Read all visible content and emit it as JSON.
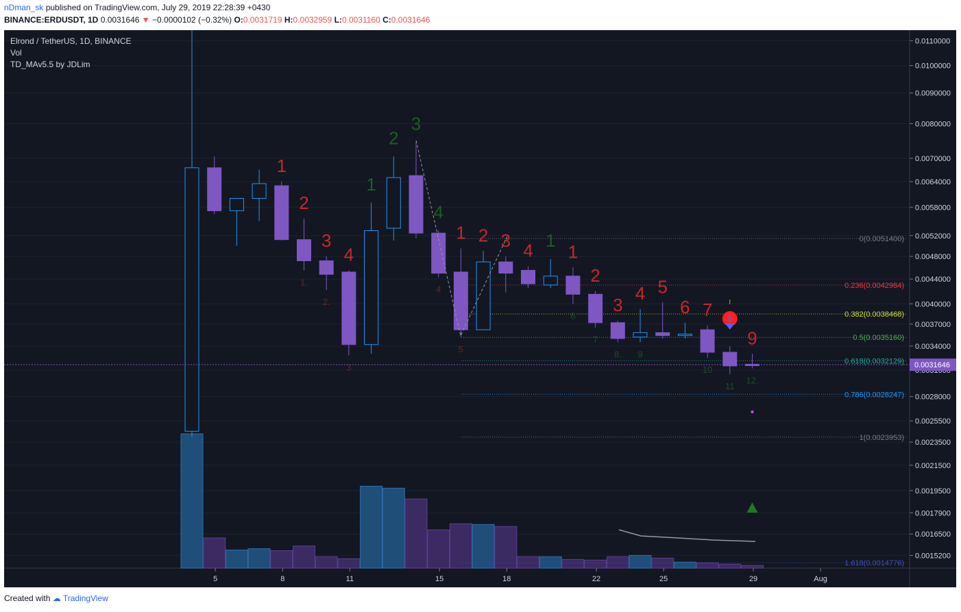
{
  "header": {
    "author": "nDman_sk",
    "published_text": "published on TradingView.com, July 29, 2019 22:28:39 +0430",
    "symbol": "BINANCE:ERDUSDT, 1D",
    "last": "0.0031646",
    "change": "−0.0000102 (−0.32%)",
    "o_label": "O:",
    "o": "0.0031719",
    "h_label": "H:",
    "h": "0.0032959",
    "l_label": "L:",
    "l": "0.0031160",
    "c_label": "C:",
    "c": "0.0031646"
  },
  "legend": {
    "title": "Elrond / TetherUS, 1D, BINANCE",
    "vol": "Vol",
    "indicator": "TD_MAv5.5 by JDLim"
  },
  "footer": {
    "created_with": "Created with",
    "brand": "TradingView"
  },
  "colors": {
    "background": "#131722",
    "candle_bear": "#7e57c2",
    "candle_bull": "#2196f3",
    "td_sell": "#c62828",
    "td_buy": "#1b5e20",
    "last_price": "#7e57c2"
  },
  "chart_data": {
    "type": "candlestick",
    "price_axis": [
      "0.0110000",
      "0.0100000",
      "0.0090000",
      "0.0080000",
      "0.0070000",
      "0.0064000",
      "0.0058000",
      "0.0052000",
      "0.0048000",
      "0.0044000",
      "0.0040000",
      "0.0037000",
      "0.0034000",
      "0.0031000",
      "0.0028000",
      "0.0025500",
      "0.0023500",
      "0.0021500",
      "0.0019500",
      "0.0017900",
      "0.0016500",
      "0.0015200"
    ],
    "price_scale": "log",
    "last_price_label": "0.0031646",
    "time_axis": [
      "5",
      "8",
      "11",
      "15",
      "18",
      "22",
      "25",
      "29",
      "Aug"
    ],
    "candles": [
      {
        "o": 0.00245,
        "h": 0.0125,
        "l": 0.0024,
        "c": 0.00675,
        "dir": "bull"
      },
      {
        "o": 0.00675,
        "h": 0.00705,
        "l": 0.00565,
        "c": 0.00572,
        "dir": "bear"
      },
      {
        "o": 0.00572,
        "h": 0.006,
        "l": 0.005,
        "c": 0.006,
        "dir": "bull"
      },
      {
        "o": 0.006,
        "h": 0.0067,
        "l": 0.0055,
        "c": 0.00635,
        "dir": "bull"
      },
      {
        "o": 0.0063,
        "h": 0.0064,
        "l": 0.0051,
        "c": 0.00512,
        "dir": "bear"
      },
      {
        "o": 0.00512,
        "h": 0.00555,
        "l": 0.00455,
        "c": 0.00472,
        "dir": "bear"
      },
      {
        "o": 0.00472,
        "h": 0.0048,
        "l": 0.00422,
        "c": 0.00448,
        "dir": "bear"
      },
      {
        "o": 0.00452,
        "h": 0.00455,
        "l": 0.00328,
        "c": 0.00342,
        "dir": "bear"
      },
      {
        "o": 0.00342,
        "h": 0.0059,
        "l": 0.0033,
        "c": 0.0053,
        "dir": "bull"
      },
      {
        "o": 0.00535,
        "h": 0.00705,
        "l": 0.0051,
        "c": 0.0065,
        "dir": "bull"
      },
      {
        "o": 0.00655,
        "h": 0.00745,
        "l": 0.00515,
        "c": 0.00525,
        "dir": "bear"
      },
      {
        "o": 0.00525,
        "h": 0.0053,
        "l": 0.00443,
        "c": 0.0045,
        "dir": "bear"
      },
      {
        "o": 0.00452,
        "h": 0.00495,
        "l": 0.00352,
        "c": 0.00362,
        "dir": "bear"
      },
      {
        "o": 0.00362,
        "h": 0.0049,
        "l": 0.00362,
        "c": 0.0047,
        "dir": "bull"
      },
      {
        "o": 0.0047,
        "h": 0.0048,
        "l": 0.00418,
        "c": 0.0045,
        "dir": "bear"
      },
      {
        "o": 0.00455,
        "h": 0.00462,
        "l": 0.00425,
        "c": 0.00432,
        "dir": "bear"
      },
      {
        "o": 0.0043,
        "h": 0.00475,
        "l": 0.00425,
        "c": 0.00445,
        "dir": "bull"
      },
      {
        "o": 0.00445,
        "h": 0.0046,
        "l": 0.004,
        "c": 0.00415,
        "dir": "bear"
      },
      {
        "o": 0.00415,
        "h": 0.0042,
        "l": 0.00365,
        "c": 0.00372,
        "dir": "bear"
      },
      {
        "o": 0.00372,
        "h": 0.00375,
        "l": 0.00345,
        "c": 0.0035,
        "dir": "bear"
      },
      {
        "o": 0.00352,
        "h": 0.00392,
        "l": 0.00345,
        "c": 0.00358,
        "dir": "bull"
      },
      {
        "o": 0.00358,
        "h": 0.00402,
        "l": 0.0035,
        "c": 0.00354,
        "dir": "bear"
      },
      {
        "o": 0.00354,
        "h": 0.00372,
        "l": 0.0035,
        "c": 0.00356,
        "dir": "bull"
      },
      {
        "o": 0.00362,
        "h": 0.00368,
        "l": 0.00325,
        "c": 0.00332,
        "dir": "bear"
      },
      {
        "o": 0.00332,
        "h": 0.0034,
        "l": 0.00305,
        "c": 0.00315,
        "dir": "bear"
      },
      {
        "o": 0.00317,
        "h": 0.0033,
        "l": 0.00312,
        "c": 0.00316,
        "dir": "bear"
      }
    ],
    "volumes": [
      {
        "v": 1.0,
        "dir": "bull"
      },
      {
        "v": 0.225,
        "dir": "bear"
      },
      {
        "v": 0.135,
        "dir": "bull"
      },
      {
        "v": 0.145,
        "dir": "bull"
      },
      {
        "v": 0.13,
        "dir": "bear"
      },
      {
        "v": 0.165,
        "dir": "bear"
      },
      {
        "v": 0.085,
        "dir": "bear"
      },
      {
        "v": 0.07,
        "dir": "bear"
      },
      {
        "v": 0.61,
        "dir": "bull"
      },
      {
        "v": 0.595,
        "dir": "bull"
      },
      {
        "v": 0.515,
        "dir": "bear"
      },
      {
        "v": 0.285,
        "dir": "bear"
      },
      {
        "v": 0.33,
        "dir": "bear"
      },
      {
        "v": 0.325,
        "dir": "bull"
      },
      {
        "v": 0.31,
        "dir": "bear"
      },
      {
        "v": 0.085,
        "dir": "bear"
      },
      {
        "v": 0.085,
        "dir": "bull"
      },
      {
        "v": 0.065,
        "dir": "bear"
      },
      {
        "v": 0.06,
        "dir": "bear"
      },
      {
        "v": 0.085,
        "dir": "bear"
      },
      {
        "v": 0.095,
        "dir": "bull"
      },
      {
        "v": 0.075,
        "dir": "bear"
      },
      {
        "v": 0.045,
        "dir": "bull"
      },
      {
        "v": 0.04,
        "dir": "bear"
      },
      {
        "v": 0.03,
        "dir": "bear"
      },
      {
        "v": 0.02,
        "dir": "bear"
      }
    ],
    "fib_levels": [
      {
        "label": "0(0.0051400)",
        "price": 0.00514,
        "color": "#787b86"
      },
      {
        "label": "0.236(0.0042984)",
        "price": 0.0042984,
        "color": "#f23645"
      },
      {
        "label": "0.382(0.0038468)",
        "price": 0.0038468,
        "color": "#cddc39"
      },
      {
        "label": "0.5(0.0035160)",
        "price": 0.003516,
        "color": "#4caf50"
      },
      {
        "label": "0.618(0.0032129)",
        "price": 0.0032129,
        "color": "#26a69a"
      },
      {
        "label": "0.786(0.0028247)",
        "price": 0.0028247,
        "color": "#2196f3"
      },
      {
        "label": "1(0.0023953)",
        "price": 0.0023953,
        "color": "#787b86"
      },
      {
        "label": "1.618(0.0014776)",
        "price": 0.0014776,
        "color": "#3f51b5"
      }
    ],
    "td_sell_counts": [
      {
        "i": 4,
        "t": "1"
      },
      {
        "i": 5,
        "t": "2"
      },
      {
        "i": 6,
        "t": "3"
      },
      {
        "i": 7,
        "t": "4"
      },
      {
        "i": 12,
        "t": "1"
      },
      {
        "i": 13,
        "t": "2"
      },
      {
        "i": 14,
        "t": "3"
      },
      {
        "i": 15,
        "t": "4"
      },
      {
        "i": 17,
        "t": "1"
      },
      {
        "i": 18,
        "t": "2"
      },
      {
        "i": 19,
        "t": "3"
      },
      {
        "i": 20,
        "t": "4"
      },
      {
        "i": 21,
        "t": "5"
      },
      {
        "i": 22,
        "t": "6"
      },
      {
        "i": 23,
        "t": "7"
      },
      {
        "i": 25,
        "t": "9"
      }
    ],
    "td_buy_counts": [
      {
        "i": 8,
        "t": "1"
      },
      {
        "i": 9,
        "t": "2"
      },
      {
        "i": 10,
        "t": "3"
      },
      {
        "i": 11,
        "t": "4"
      },
      {
        "i": 16,
        "t": "1"
      }
    ],
    "td_small_counts": [
      {
        "i": 5,
        "t": "1."
      },
      {
        "i": 6,
        "t": "2."
      },
      {
        "i": 7,
        "t": "3"
      },
      {
        "i": 11,
        "t": "4"
      },
      {
        "i": 12,
        "t": "5"
      },
      {
        "i": 17,
        "t": "6"
      },
      {
        "i": 18,
        "t": "7"
      },
      {
        "i": 19,
        "t": "8."
      },
      {
        "i": 20,
        "t": "9"
      },
      {
        "i": 23,
        "t": "10"
      },
      {
        "i": 24,
        "t": "11"
      },
      {
        "i": 25,
        "t": "12."
      }
    ],
    "marker_8": "8",
    "marker_i": "I"
  }
}
